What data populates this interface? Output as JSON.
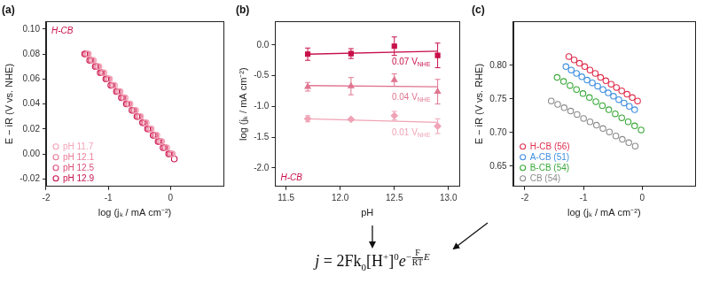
{
  "chart_data": [
    {
      "type": "scatter",
      "title": "(a)",
      "annotation": "H-CB",
      "x_label": "log (jₖ / mA cm⁻²)",
      "y_label": "E − iR (V vs. NHE)",
      "xlim": [
        -2,
        0.85
      ],
      "xticks": [
        -2,
        -1,
        0
      ],
      "ylim": [
        -0.026,
        0.106
      ],
      "yticks": [
        -0.02,
        {
          "value": 0,
          "label": "0.00"
        },
        0.02,
        0.04,
        0.06,
        0.08,
        {
          "value": 0.1,
          "label": "0.10"
        }
      ],
      "grid": false,
      "legend": "lower left",
      "marker": "open_circle",
      "series": [
        {
          "name": "pH 11.7",
          "color": "#f2a3b7",
          "x": [
            -1.32,
            -1.24,
            -1.15,
            -1.07,
            -0.98,
            -0.9,
            -0.81,
            -0.73,
            -0.65,
            -0.56,
            -0.48,
            -0.39,
            -0.31,
            -0.22,
            -0.14,
            -0.06,
            0.03
          ],
          "values": [
            0.08,
            0.075,
            0.07,
            0.065,
            0.06,
            0.055,
            0.05,
            0.045,
            0.04,
            0.035,
            0.03,
            0.025,
            0.02,
            0.015,
            0.01,
            0.005,
            0
          ]
        },
        {
          "name": "pH 12.1",
          "color": "#ea7c98",
          "x": [
            -1.34,
            -1.26,
            -1.17,
            -1.09,
            -1.0,
            -0.92,
            -0.83,
            -0.75,
            -0.67,
            -0.58,
            -0.5,
            -0.41,
            -0.33,
            -0.24,
            -0.16,
            -0.08,
            0.01
          ],
          "values": [
            0.08,
            0.075,
            0.07,
            0.065,
            0.06,
            0.055,
            0.05,
            0.045,
            0.04,
            0.035,
            0.03,
            0.025,
            0.02,
            0.015,
            0.01,
            0.005,
            0
          ]
        },
        {
          "name": "pH 12.5",
          "color": "#dc4d77",
          "x": [
            -1.36,
            -1.28,
            -1.19,
            -1.11,
            -1.02,
            -0.94,
            -0.85,
            -0.77,
            -0.69,
            -0.6,
            -0.52,
            -0.43,
            -0.35,
            -0.26,
            -0.18,
            -0.1,
            -0.01
          ],
          "values": [
            0.08,
            0.075,
            0.07,
            0.065,
            0.06,
            0.055,
            0.05,
            0.045,
            0.04,
            0.035,
            0.03,
            0.025,
            0.02,
            0.015,
            0.01,
            0.005,
            0
          ]
        },
        {
          "name": "pH 12.9",
          "color": "#c8104a",
          "x": [
            -1.38,
            -1.3,
            -1.21,
            -1.13,
            -1.04,
            -0.96,
            -0.87,
            -0.79,
            -0.71,
            -0.62,
            -0.54,
            -0.45,
            -0.37,
            -0.28,
            -0.2,
            -0.12,
            -0.03,
            0.06
          ],
          "values": [
            0.08,
            0.075,
            0.07,
            0.065,
            0.06,
            0.055,
            0.05,
            0.045,
            0.04,
            0.035,
            0.03,
            0.025,
            0.02,
            0.015,
            0.01,
            0.005,
            0,
            -0.004
          ]
        }
      ]
    },
    {
      "type": "scatter",
      "title": "(b)",
      "annotation": "H-CB",
      "x_label": "pH",
      "y_label": "log (jₖ / mA cm⁻²)",
      "xlim": [
        11.4,
        13.1
      ],
      "xticks": [
        11.5,
        {
          "value": 12,
          "label": "12.0"
        },
        12.5,
        {
          "value": 13,
          "label": "13.0"
        }
      ],
      "ylim": [
        -2.3,
        0.38
      ],
      "yticks": [
        {
          "value": -2,
          "label": "-2.0"
        },
        -1.5,
        {
          "value": -1,
          "label": "-1.0"
        },
        -0.5,
        {
          "value": 0,
          "label": "0.0"
        }
      ],
      "grid": false,
      "series": [
        {
          "name": "0.07 VNHE",
          "color": "#c8104a",
          "marker": "square",
          "x": [
            11.7,
            12.1,
            12.5,
            12.9
          ],
          "values": [
            -0.15,
            -0.14,
            -0.02,
            -0.17
          ],
          "errors": [
            0.1,
            0.08,
            0.15,
            0.2
          ],
          "fit": {
            "x": [
              11.7,
              12.9
            ],
            "values": [
              -0.15,
              -0.1
            ]
          }
        },
        {
          "name": "0.04 VNHE",
          "color": "#e07590",
          "marker": "triangle",
          "x": [
            11.7,
            12.1,
            12.5,
            12.9
          ],
          "values": [
            -0.68,
            -0.67,
            -0.57,
            -0.76
          ],
          "errors": [
            0.07,
            0.14,
            0.1,
            0.2
          ],
          "fit": {
            "x": [
              11.7,
              12.9
            ],
            "values": [
              -0.66,
              -0.68
            ]
          }
        },
        {
          "name": "0.01 VNHE",
          "color": "#f0a3b6",
          "marker": "diamond",
          "x": [
            11.7,
            12.1,
            12.5,
            12.9
          ],
          "values": [
            -1.2,
            -1.21,
            -1.15,
            -1.32
          ],
          "errors": [
            0.05,
            0.02,
            0.07,
            0.12
          ],
          "fit": {
            "x": [
              11.7,
              12.9
            ],
            "values": [
              -1.2,
              -1.26
            ]
          }
        }
      ]
    },
    {
      "type": "scatter",
      "title": "(c)",
      "x_label": "log (jₖ / mA cm⁻²)",
      "y_label": "E − iR (V vs. RHE)",
      "xlim": [
        -2.2,
        0.9
      ],
      "xticks": [
        -2,
        -1,
        0
      ],
      "ylim": [
        0.62,
        0.865
      ],
      "yticks": [
        0.65,
        {
          "value": 0.7,
          "label": "0.70"
        },
        0.75,
        {
          "value": 0.8,
          "label": "0.80"
        }
      ],
      "grid": false,
      "legend": "lower left",
      "marker": "open_circle",
      "series": [
        {
          "name": "H-CB (56)",
          "color": "#e0304f",
          "x": [
            -1.25,
            -1.16,
            -1.07,
            -0.98,
            -0.89,
            -0.8,
            -0.71,
            -0.62,
            -0.53,
            -0.44,
            -0.35,
            -0.26,
            -0.17,
            -0.08
          ],
          "values": [
            0.813,
            0.808,
            0.803,
            0.798,
            0.793,
            0.788,
            0.782,
            0.777,
            0.772,
            0.767,
            0.762,
            0.757,
            0.752,
            0.747
          ]
        },
        {
          "name": "A-CB (51)",
          "color": "#3f8fe0",
          "x": [
            -1.3,
            -1.21,
            -1.12,
            -1.03,
            -0.94,
            -0.85,
            -0.76,
            -0.67,
            -0.58,
            -0.49,
            -0.4,
            -0.31,
            -0.22,
            -0.13
          ],
          "values": [
            0.798,
            0.793,
            0.788,
            0.783,
            0.778,
            0.774,
            0.769,
            0.764,
            0.759,
            0.754,
            0.749,
            0.744,
            0.739,
            0.734
          ]
        },
        {
          "name": "B-CB (54)",
          "color": "#3aa83a",
          "x": [
            -1.45,
            -1.34,
            -1.23,
            -1.12,
            -1.01,
            -0.9,
            -0.79,
            -0.68,
            -0.57,
            -0.46,
            -0.35,
            -0.24,
            -0.13,
            -0.02
          ],
          "values": [
            0.782,
            0.776,
            0.77,
            0.764,
            0.758,
            0.752,
            0.746,
            0.74,
            0.734,
            0.728,
            0.722,
            0.716,
            0.71,
            0.704
          ]
        },
        {
          "name": "CB (54)",
          "color": "#8c8c8c",
          "x": [
            -1.55,
            -1.44,
            -1.33,
            -1.22,
            -1.11,
            -1.0,
            -0.89,
            -0.78,
            -0.67,
            -0.56,
            -0.45,
            -0.34,
            -0.23,
            -0.12
          ],
          "values": [
            0.747,
            0.742,
            0.737,
            0.732,
            0.727,
            0.721,
            0.716,
            0.711,
            0.706,
            0.701,
            0.695,
            0.69,
            0.685,
            0.68
          ]
        }
      ]
    }
  ],
  "equation": {
    "lhs": "j",
    "relation": "=",
    "coefficient": "2Fk",
    "coefficient_sub": "0",
    "concentration": "[H",
    "concentration_sup": "+",
    "concentration_close": "]",
    "order": "0",
    "base": "e",
    "exponent_sign": "−",
    "exponent_num": "F",
    "exponent_den": "RT",
    "exponent_var": "E"
  }
}
